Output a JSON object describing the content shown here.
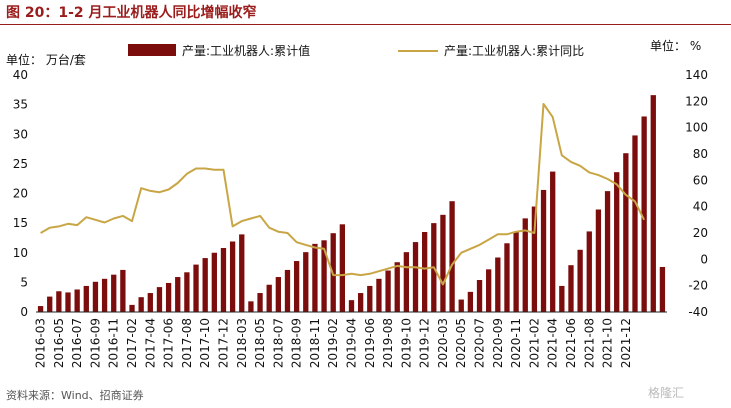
{
  "title": "图 20：1-2 月工业机器人同比增幅收窄",
  "source": "资料来源：Wind、招商证券",
  "watermark": "格隆汇",
  "colors": {
    "title": "#9b1c1c",
    "bar": "#7b0d0d",
    "line": "#c9a645"
  },
  "chart_data": {
    "type": "bar",
    "left_unit": "单位：  万台/套",
    "right_unit": "单位：  %",
    "left_axis": {
      "ticks": [
        0,
        5,
        10,
        15,
        20,
        25,
        30,
        35,
        40
      ],
      "ylim": [
        0,
        40
      ]
    },
    "right_axis": {
      "ticks": [
        -40,
        -20,
        0,
        20,
        40,
        60,
        80,
        100,
        120,
        140
      ],
      "ylim": [
        -40,
        140
      ]
    },
    "x_tick_labels": [
      "2016-03",
      "2016-05",
      "2016-07",
      "2016-09",
      "2016-11",
      "2017-02",
      "2017-04",
      "2017-06",
      "2017-08",
      "2017-10",
      "2017-12",
      "2018-03",
      "2018-05",
      "2018-07",
      "2018-09",
      "2018-11",
      "2019-02",
      "2019-04",
      "2019-06",
      "2019-08",
      "2019-10",
      "2019-12",
      "2020-03",
      "2020-05",
      "2020-07",
      "2020-09",
      "2020-11",
      "2021-02",
      "2021-04",
      "2021-06",
      "2021-08",
      "2021-10",
      "2021-12"
    ],
    "legend_position": "top",
    "series": [
      {
        "name": "产量:工业机器人:累计值",
        "kind": "bar",
        "axis": "left",
        "values": [
          1.0,
          2.6,
          3.5,
          3.3,
          3.8,
          4.4,
          5.1,
          5.6,
          6.3,
          7.1,
          1.2,
          2.5,
          3.2,
          4.2,
          4.9,
          5.9,
          6.7,
          8.0,
          9.1,
          10.0,
          10.8,
          11.9,
          13.1,
          1.8,
          3.2,
          4.6,
          5.9,
          7.1,
          8.6,
          10.1,
          11.5,
          12.1,
          13.3,
          14.8,
          2.0,
          3.2,
          4.4,
          5.6,
          7.0,
          8.4,
          10.1,
          11.8,
          13.5,
          15.0,
          16.4,
          18.7,
          2.1,
          3.4,
          5.4,
          7.2,
          9.2,
          11.6,
          13.6,
          15.8,
          17.8,
          20.6,
          23.7,
          4.4,
          7.9,
          10.5,
          13.6,
          17.3,
          20.4,
          23.6,
          26.8,
          29.8,
          33.0,
          36.6,
          7.6
        ]
      },
      {
        "name": "产量:工业机器人:累计同比",
        "kind": "line",
        "axis": "right",
        "values": [
          20,
          24,
          25,
          27,
          26,
          32,
          30,
          28,
          31,
          33,
          29,
          54,
          52,
          51,
          53,
          58,
          65,
          69,
          69,
          68,
          68,
          25,
          29,
          31,
          33,
          24,
          21,
          20,
          13,
          11,
          9,
          8,
          -12,
          -12,
          -11,
          -12,
          -11,
          -9,
          -7,
          -5,
          -6,
          -6,
          -7,
          -6,
          -19,
          -4,
          5,
          8,
          11,
          15,
          19,
          19,
          21,
          22,
          20,
          118,
          108,
          79,
          74,
          71,
          66,
          64,
          61,
          57,
          49,
          44,
          30
        ]
      }
    ]
  }
}
